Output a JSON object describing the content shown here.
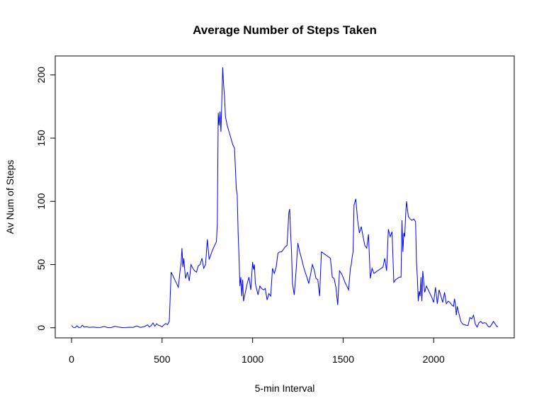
{
  "chart_data": {
    "type": "line",
    "title": "Average Number of Steps Taken",
    "xlabel": "5-min Interval",
    "ylabel": "Av Num of Steps",
    "xlim": [
      -90,
      2445
    ],
    "ylim": [
      -8,
      215
    ],
    "x_ticks": [
      0,
      500,
      1000,
      1500,
      2000
    ],
    "y_ticks": [
      0,
      50,
      100,
      150,
      200
    ],
    "x_tick_labels": [
      "0",
      "500",
      "1000",
      "1500",
      "2000"
    ],
    "y_tick_labels": [
      "0",
      "50",
      "100",
      "150",
      "200"
    ],
    "grid": false,
    "legend": "none",
    "line_color": "#0000ff",
    "series": [
      {
        "x": [
          0,
          10,
          20,
          30,
          40,
          50,
          60,
          70,
          80,
          100,
          120,
          140,
          160,
          180,
          200,
          220,
          240,
          260,
          280,
          300,
          320,
          340,
          360,
          380,
          400,
          410,
          420,
          430,
          440,
          450,
          460,
          470,
          480,
          490,
          500,
          510,
          520,
          530,
          540,
          550,
          560,
          570,
          580,
          590,
          600,
          605,
          610,
          615,
          620,
          625,
          630,
          640,
          650,
          660,
          670,
          680,
          690,
          700,
          710,
          720,
          730,
          740,
          750,
          760,
          770,
          780,
          790,
          800,
          805,
          810,
          815,
          820,
          825,
          830,
          835,
          840,
          845,
          850,
          860,
          870,
          880,
          890,
          900,
          910,
          915,
          920,
          925,
          930,
          935,
          940,
          945,
          950,
          960,
          970,
          980,
          990,
          1000,
          1005,
          1010,
          1015,
          1020,
          1030,
          1040,
          1050,
          1060,
          1070,
          1080,
          1090,
          1100,
          1110,
          1120,
          1130,
          1140,
          1150,
          1160,
          1170,
          1180,
          1190,
          1200,
          1205,
          1210,
          1215,
          1220,
          1230,
          1240,
          1250,
          1260,
          1270,
          1280,
          1290,
          1300,
          1310,
          1320,
          1330,
          1340,
          1350,
          1360,
          1370,
          1380,
          1390,
          1400,
          1410,
          1420,
          1430,
          1440,
          1450,
          1460,
          1470,
          1480,
          1490,
          1500,
          1510,
          1520,
          1530,
          1540,
          1545,
          1550,
          1555,
          1560,
          1570,
          1580,
          1590,
          1600,
          1610,
          1620,
          1630,
          1640,
          1650,
          1660,
          1670,
          1680,
          1690,
          1700,
          1710,
          1720,
          1730,
          1740,
          1750,
          1760,
          1770,
          1780,
          1790,
          1800,
          1810,
          1820,
          1825,
          1830,
          1835,
          1840,
          1845,
          1850,
          1860,
          1870,
          1880,
          1890,
          1900,
          1905,
          1910,
          1915,
          1920,
          1925,
          1930,
          1935,
          1940,
          1950,
          1960,
          1970,
          1980,
          1990,
          2000,
          2010,
          2020,
          2030,
          2040,
          2050,
          2060,
          2070,
          2080,
          2090,
          2100,
          2110,
          2115,
          2120,
          2125,
          2130,
          2140,
          2150,
          2160,
          2170,
          2180,
          2190,
          2200,
          2210,
          2220,
          2230,
          2240,
          2250,
          2260,
          2270,
          2280,
          2290,
          2300,
          2310,
          2320,
          2330,
          2340,
          2350,
          2355
        ],
        "y": [
          1.7,
          0.3,
          0.1,
          1.5,
          0.2,
          0.3,
          2.1,
          0.5,
          0.8,
          0.3,
          0.5,
          0.2,
          0.3,
          1.0,
          0.1,
          0.2,
          1.2,
          0.5,
          0.1,
          0.2,
          0.4,
          0.3,
          1.4,
          0.3,
          0.8,
          1.5,
          2.3,
          0.6,
          1.8,
          3.8,
          1.2,
          3.2,
          2.0,
          1.5,
          0.7,
          2.3,
          3.4,
          2.5,
          5.0,
          44.0,
          41.0,
          38.0,
          35.0,
          32.0,
          46.0,
          51.0,
          63.0,
          48.0,
          55.0,
          46.0,
          39.0,
          44.0,
          37.0,
          50.0,
          47.0,
          45.0,
          44.0,
          49.0,
          50.0,
          55.0,
          47.0,
          50.0,
          70.0,
          54.0,
          58.0,
          62.0,
          65.0,
          68.0,
          82.0,
          170.0,
          160.0,
          171.0,
          155.0,
          180.0,
          206.0,
          192.0,
          183.0,
          167.0,
          160.0,
          155.0,
          150.0,
          145.0,
          142.0,
          110.0,
          105.0,
          75.0,
          55.0,
          33.0,
          40.0,
          25.0,
          38.0,
          21.0,
          28.0,
          35.0,
          40.0,
          30.0,
          52.0,
          46.0,
          50.0,
          35.0,
          32.0,
          26.0,
          33.0,
          31.0,
          30.0,
          31.0,
          22.0,
          27.0,
          25.0,
          47.0,
          43.0,
          48.0,
          59.0,
          60.0,
          60.0,
          62.0,
          64.0,
          65.0,
          91.0,
          94.0,
          75.0,
          60.0,
          35.0,
          26.0,
          45.0,
          67.0,
          60.0,
          55.0,
          49.0,
          44.0,
          40.0,
          35.0,
          42.0,
          50.0,
          46.0,
          39.0,
          38.0,
          25.0,
          60.0,
          59.0,
          58.0,
          57.0,
          56.0,
          55.0,
          40.0,
          39.0,
          32.0,
          18.0,
          45.0,
          43.0,
          40.0,
          36.0,
          33.0,
          30.0,
          47.0,
          50.0,
          56.0,
          60.0,
          97.0,
          102.0,
          85.0,
          75.0,
          80.0,
          72.0,
          65.0,
          63.0,
          74.0,
          39.0,
          47.0,
          43.0,
          44.0,
          45.0,
          46.0,
          47.0,
          48.0,
          55.0,
          45.0,
          78.0,
          72.0,
          76.0,
          36.0,
          38.0,
          39.0,
          40.0,
          40.0,
          85.0,
          60.0,
          75.0,
          72.0,
          88.0,
          100.0,
          88.0,
          86.0,
          85.0,
          86.0,
          84.0,
          52.0,
          40.0,
          21.0,
          29.0,
          25.0,
          40.0,
          21.0,
          45.0,
          28.0,
          33.0,
          30.0,
          27.0,
          24.0,
          20.0,
          32.0,
          19.0,
          30.0,
          25.0,
          20.0,
          28.0,
          19.0,
          21.0,
          20.0,
          18.0,
          17.0,
          23.0,
          19.0,
          10.0,
          17.0,
          11.0,
          5.0,
          3.0,
          2.4,
          2.0,
          1.8,
          8.0,
          7.0,
          10.0,
          3.0,
          0.5,
          4.0,
          5.0,
          3.5,
          4.0,
          3.6,
          1.2,
          0.6,
          2.5,
          5.0,
          3.0,
          0.8,
          1.2
        ]
      }
    ]
  }
}
